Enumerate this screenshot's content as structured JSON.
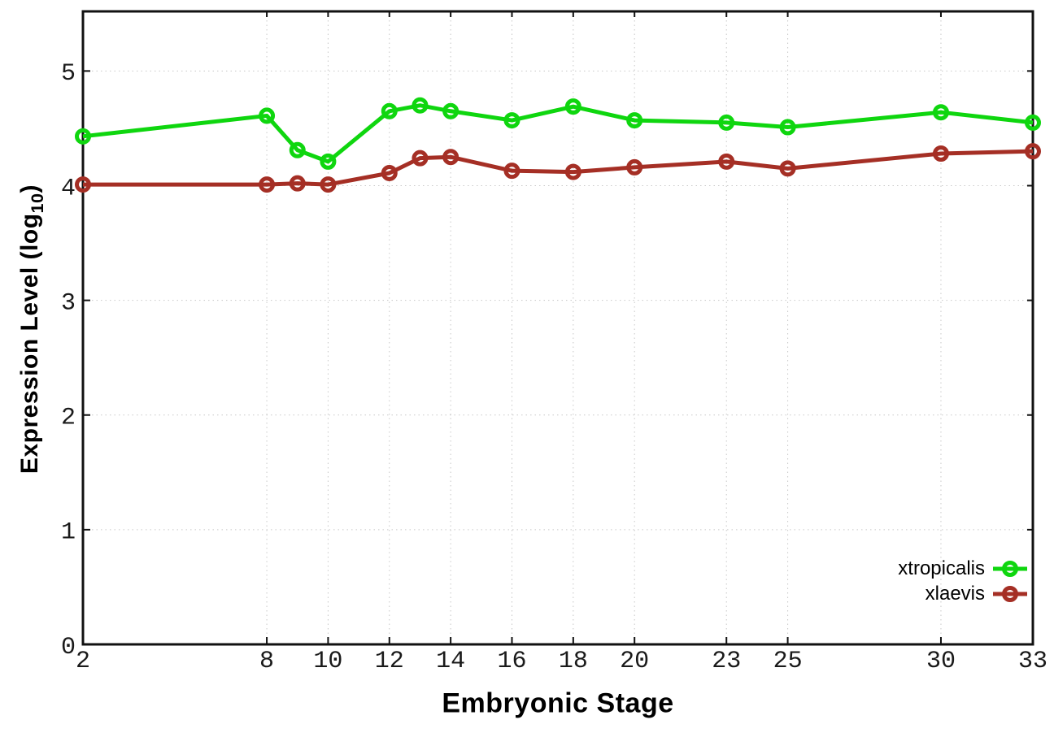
{
  "figure": {
    "ylabel_prefix": "Expression Level (log",
    "ylabel_sub": "10",
    "ylabel_suffix": ")",
    "xlabel": "Embryonic Stage"
  },
  "chart_data": {
    "type": "line",
    "title": "",
    "xlabel": "Embryonic Stage",
    "ylabel": "Expression Level (log10)",
    "x": [
      2,
      8,
      9,
      10,
      12,
      13,
      14,
      16,
      18,
      20,
      23,
      25,
      30,
      33
    ],
    "series": [
      {
        "name": "xtropicalis",
        "color": "#0fd60f",
        "values": [
          4.43,
          4.61,
          4.31,
          4.21,
          4.65,
          4.7,
          4.65,
          4.57,
          4.69,
          4.57,
          4.55,
          4.51,
          4.64,
          4.55
        ]
      },
      {
        "name": "xlaevis",
        "color": "#a52f25",
        "values": [
          4.01,
          4.01,
          4.02,
          4.01,
          4.11,
          4.24,
          4.25,
          4.13,
          4.12,
          4.16,
          4.21,
          4.15,
          4.28,
          4.3
        ]
      }
    ],
    "xticks": [
      2,
      8,
      10,
      12,
      14,
      16,
      18,
      20,
      23,
      25,
      30,
      33
    ],
    "yticks": [
      0,
      1,
      2,
      3,
      4,
      5
    ],
    "xlim": [
      2,
      33
    ],
    "ylim": [
      0,
      5.52
    ],
    "grid": true,
    "legend_position": "inside-bottom-right",
    "marker": "open-circle",
    "colors": {
      "axis": "#111111",
      "grid": "#c8c8c8",
      "tick_label": "#1a1a1a"
    }
  }
}
